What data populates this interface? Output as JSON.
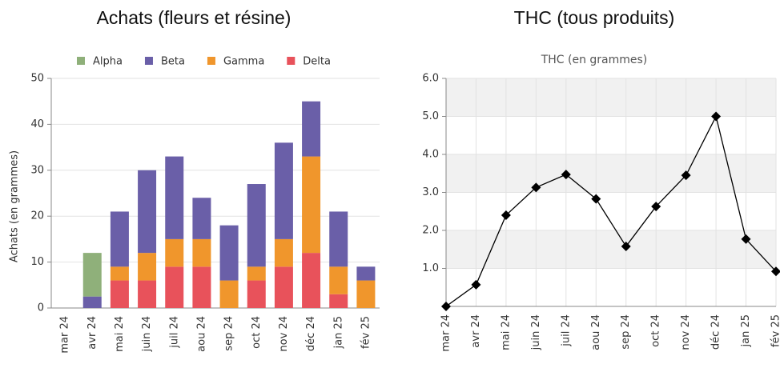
{
  "chart_data": [
    {
      "type": "bar",
      "stacked": true,
      "title": "Achats (fleurs et résine)",
      "ylabel": "Achats (en grammes)",
      "categories": [
        "mar 24",
        "avr 24",
        "mai 24",
        "juin 24",
        "juil 24",
        "aou 24",
        "sep 24",
        "oct 24",
        "nov 24",
        "déc 24",
        "jan 25",
        "fév 25"
      ],
      "series": [
        {
          "name": "Alpha",
          "color": "#8fb07a",
          "values": [
            0,
            9.5,
            0,
            0,
            0,
            0,
            0,
            0,
            0,
            0,
            0,
            0
          ]
        },
        {
          "name": "Beta",
          "color": "#6a5fa8",
          "values": [
            0,
            2.5,
            12,
            18,
            18,
            9,
            12,
            18,
            21,
            12,
            12,
            3
          ]
        },
        {
          "name": "Gamma",
          "color": "#f0962c",
          "values": [
            0,
            0,
            3,
            6,
            6,
            6,
            6,
            3,
            6,
            21,
            6,
            6
          ]
        },
        {
          "name": "Delta",
          "color": "#e8525b",
          "values": [
            0,
            0,
            6,
            6,
            9,
            9,
            0,
            6,
            9,
            12,
            3,
            0
          ]
        }
      ],
      "ylim": [
        0,
        50
      ],
      "yticks": [
        0,
        10,
        20,
        30,
        40,
        50
      ],
      "grid": true,
      "legend": "top"
    },
    {
      "type": "line",
      "title": "THC (tous produits)",
      "subtitle": "THC (en grammes)",
      "categories": [
        "mar 24",
        "avr 24",
        "mai 24",
        "juin 24",
        "juil 24",
        "aou 24",
        "sep 24",
        "oct 24",
        "nov 24",
        "déc 24",
        "jan 25",
        "fév 25"
      ],
      "series": [
        {
          "name": "THC",
          "color": "#000000",
          "values": [
            0,
            0.57,
            2.4,
            3.13,
            3.47,
            2.83,
            1.58,
            2.63,
            3.45,
            5.0,
            1.77,
            0.92
          ]
        }
      ],
      "ylim": [
        0,
        6
      ],
      "yticks": [
        {
          "value": 1,
          "label": "1.0"
        },
        {
          "value": 2,
          "label": "2.0"
        },
        {
          "value": 3,
          "label": "3.0"
        },
        {
          "value": 4,
          "label": "4.0"
        },
        {
          "value": 5,
          "label": "5.0"
        },
        {
          "value": 6,
          "label": "6.0"
        }
      ],
      "grid": true,
      "bands": true
    }
  ]
}
